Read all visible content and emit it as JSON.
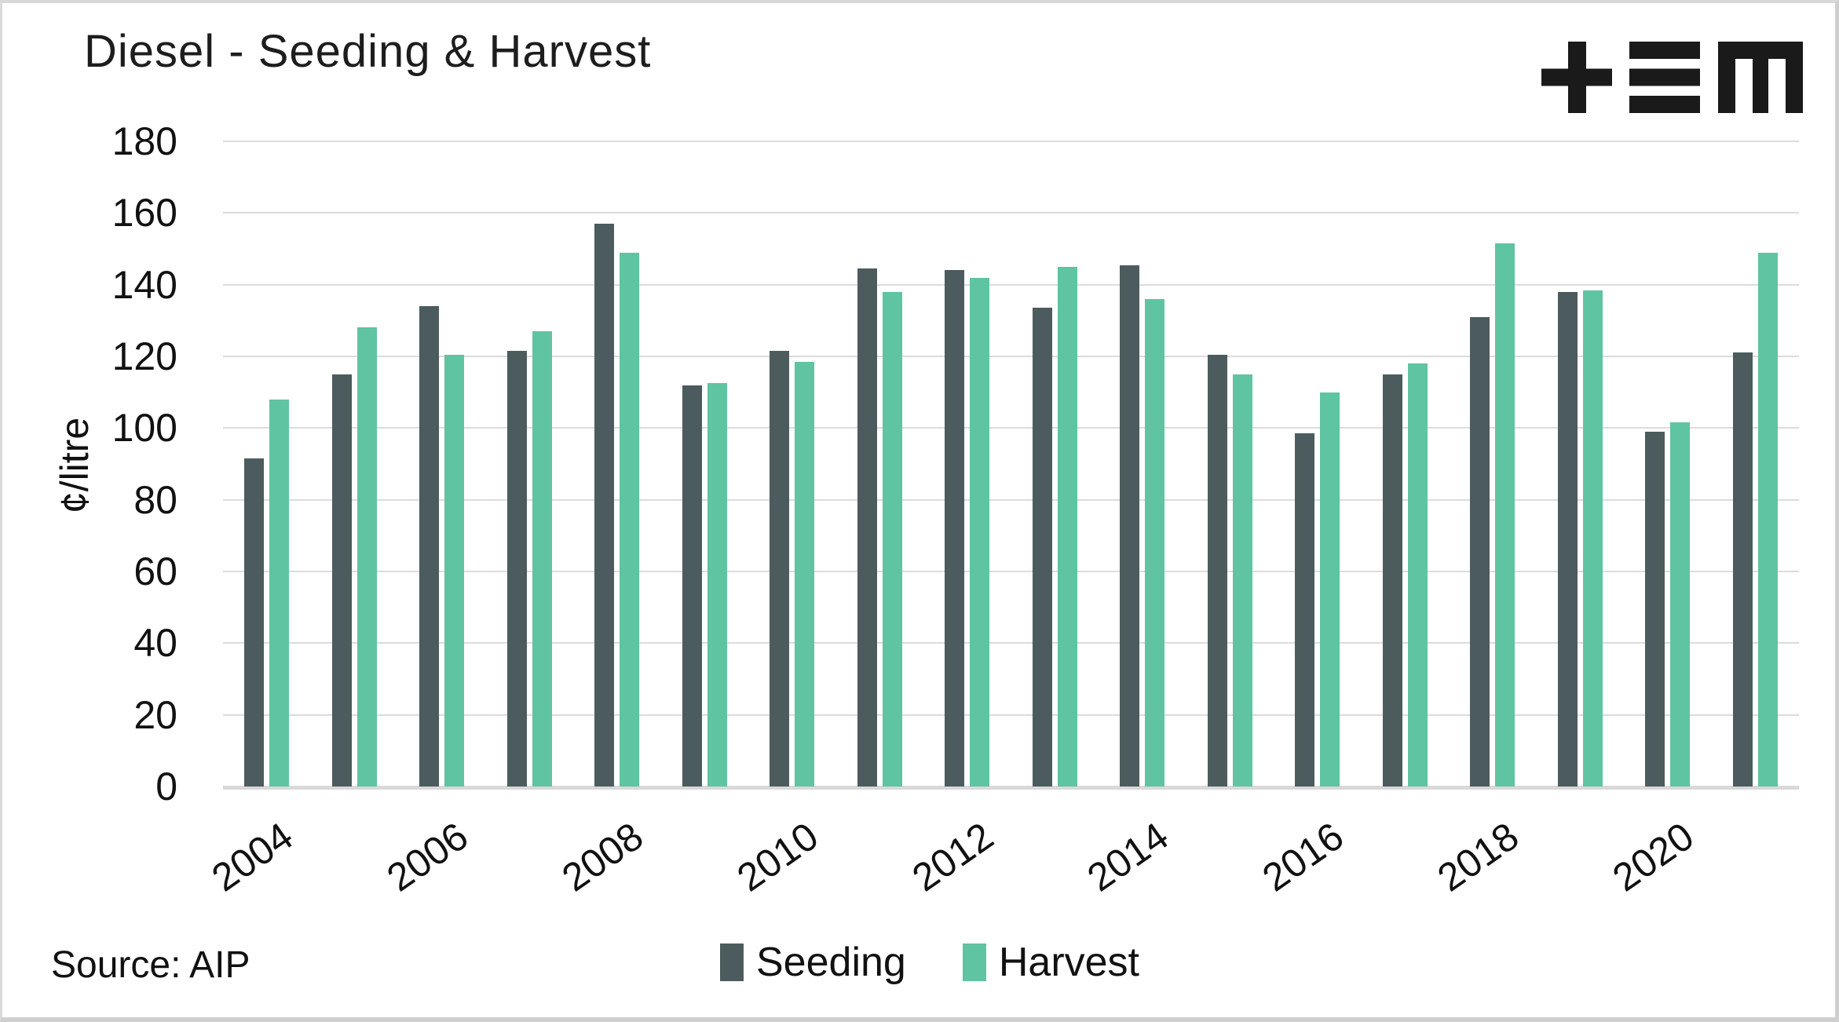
{
  "header": {
    "title": "Diesel - Seeding & Harvest",
    "logo_name": "tem-logo"
  },
  "footer": {
    "source": "Source: AIP"
  },
  "colors": {
    "seeding": "#4c5b5e",
    "harvest": "#5fc4a1",
    "gridline": "#dcdcdc",
    "axis_line": "#d9d9d9",
    "text": "#111111"
  },
  "chart_data": {
    "type": "bar",
    "title": "Diesel - Seeding & Harvest",
    "xlabel": "",
    "ylabel": "¢/litre",
    "ylim": [
      0,
      180
    ],
    "ytick_step": 20,
    "grid": "horizontal",
    "legend_position": "bottom",
    "categories": [
      2004,
      2005,
      2006,
      2007,
      2008,
      2009,
      2010,
      2011,
      2012,
      2013,
      2014,
      2015,
      2016,
      2017,
      2018,
      2019,
      2020,
      2021
    ],
    "xtick_labels": [
      "2004",
      "2006",
      "2008",
      "2010",
      "2012",
      "2014",
      "2016",
      "2018",
      "2020"
    ],
    "series": [
      {
        "name": "Seeding",
        "color": "#4c5b5e",
        "values": [
          91.5,
          115,
          134,
          121.5,
          157,
          112,
          121.5,
          144.5,
          144,
          133.5,
          145.5,
          120.5,
          98.5,
          115,
          131,
          138,
          99,
          121
        ]
      },
      {
        "name": "Harvest",
        "color": "#5fc4a1",
        "values": [
          108,
          128,
          120.5,
          127,
          149,
          112.5,
          118.5,
          138,
          142,
          145,
          136,
          115,
          110,
          118,
          151.5,
          138.5,
          101.5,
          149
        ]
      }
    ]
  }
}
